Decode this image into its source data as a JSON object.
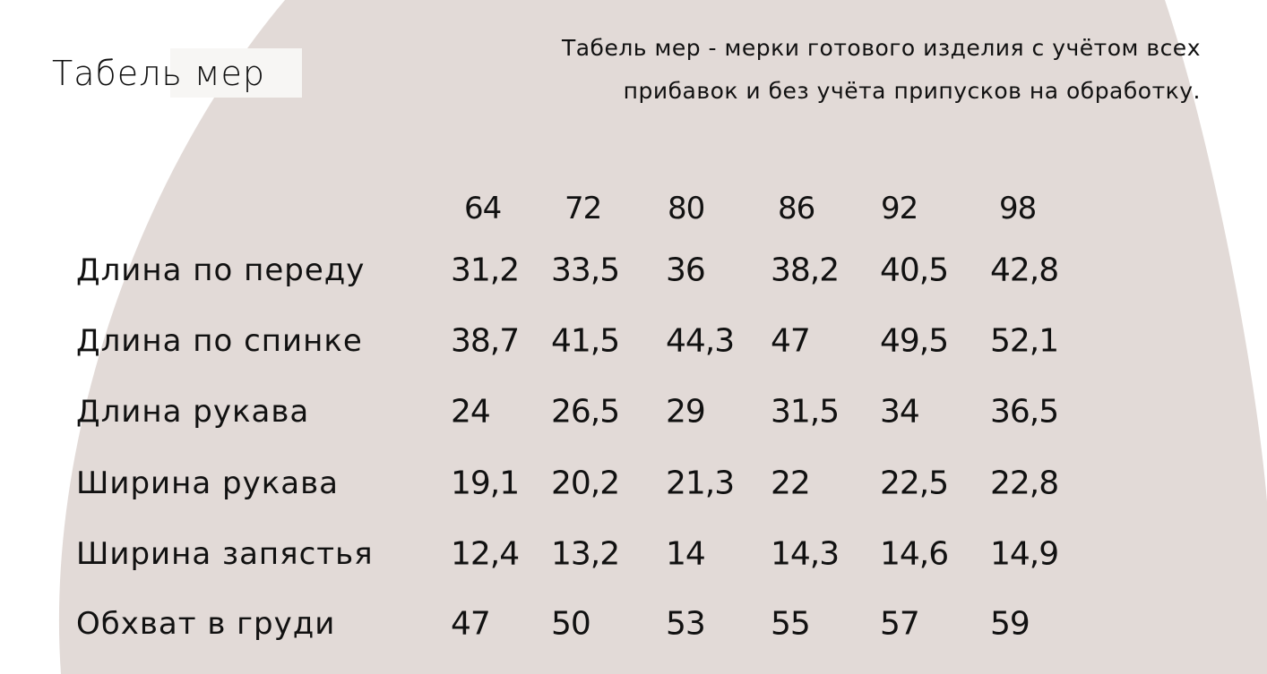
{
  "background_color": "#ffffff",
  "shape_color": "#e2dad7",
  "title": "Табель мер",
  "subtitle_lines": [
    "Табель мер - мерки готового изделия с учётом всех",
    "прибавок и без учёта припусков на обработку."
  ],
  "table": {
    "sizes": [
      "64",
      "72",
      "80",
      "86",
      "92",
      "98"
    ],
    "rows": [
      {
        "label": "Длина по переду",
        "values": [
          "31,2",
          "33,5",
          "36",
          "38,2",
          "40,5",
          "42,8"
        ]
      },
      {
        "label": "Длина по спинке",
        "values": [
          "38,7",
          "41,5",
          "44,3",
          "47",
          "49,5",
          "52,1"
        ]
      },
      {
        "label": "Длина рукава",
        "values": [
          "24",
          "26,5",
          "29",
          "31,5",
          "34",
          "36,5"
        ]
      },
      {
        "label": "Ширина рукава",
        "values": [
          "19,1",
          "20,2",
          "21,3",
          "22",
          "22,5",
          "22,8"
        ]
      },
      {
        "label": "Ширина запястья",
        "values": [
          "12,4",
          "13,2",
          "14",
          "14,3",
          "14,6",
          "14,9"
        ]
      },
      {
        "label": "Обхват в груди",
        "values": [
          "47",
          "50",
          "53",
          "55",
          "57",
          "59"
        ]
      }
    ]
  }
}
